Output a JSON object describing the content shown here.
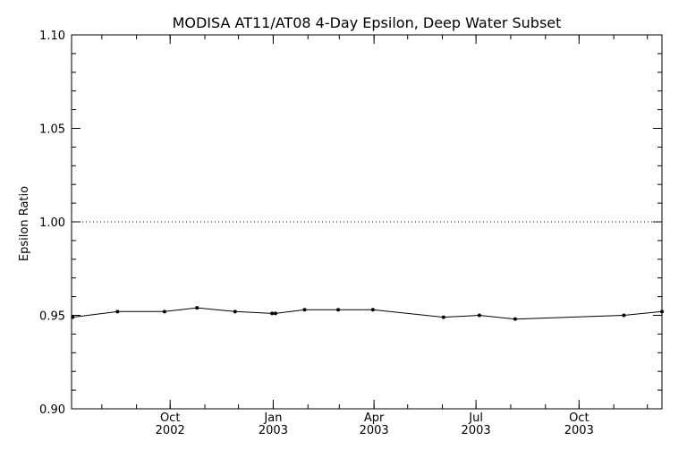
{
  "chart_data": {
    "type": "line",
    "title": "MODISA AT11/AT08 4-Day Epsilon, Deep Water Subset",
    "xlabel": "",
    "ylabel": "Epsilon Ratio",
    "xlim": [
      "2002-07-05",
      "2003-12-14"
    ],
    "ylim": [
      0.9,
      1.1
    ],
    "y_ticks": [
      "0.90",
      "0.95",
      "1.00",
      "1.05",
      "1.10"
    ],
    "x_ticks": [
      {
        "date": "2002-10-01",
        "month": "Oct",
        "year": "2002"
      },
      {
        "date": "2003-01-01",
        "month": "Jan",
        "year": "2003"
      },
      {
        "date": "2003-04-01",
        "month": "Apr",
        "year": "2003"
      },
      {
        "date": "2003-07-01",
        "month": "Jul",
        "year": "2003"
      },
      {
        "date": "2003-10-01",
        "month": "Oct",
        "year": "2003"
      }
    ],
    "reference_line": {
      "y": 1.0,
      "style": "dotted"
    },
    "grid": false,
    "series": [
      {
        "x": [
          "2002-07-06",
          "2002-08-15",
          "2002-09-26",
          "2002-10-25",
          "2002-11-28",
          "2002-12-31",
          "2003-01-03",
          "2003-01-29",
          "2003-02-28",
          "2003-03-31",
          "2003-06-02",
          "2003-07-04",
          "2003-08-05",
          "2003-11-10",
          "2003-12-14"
        ],
        "y": [
          0.949,
          0.952,
          0.952,
          0.954,
          0.952,
          0.951,
          0.951,
          0.953,
          0.953,
          0.953,
          0.949,
          0.95,
          0.948,
          0.95,
          0.952
        ]
      }
    ]
  }
}
